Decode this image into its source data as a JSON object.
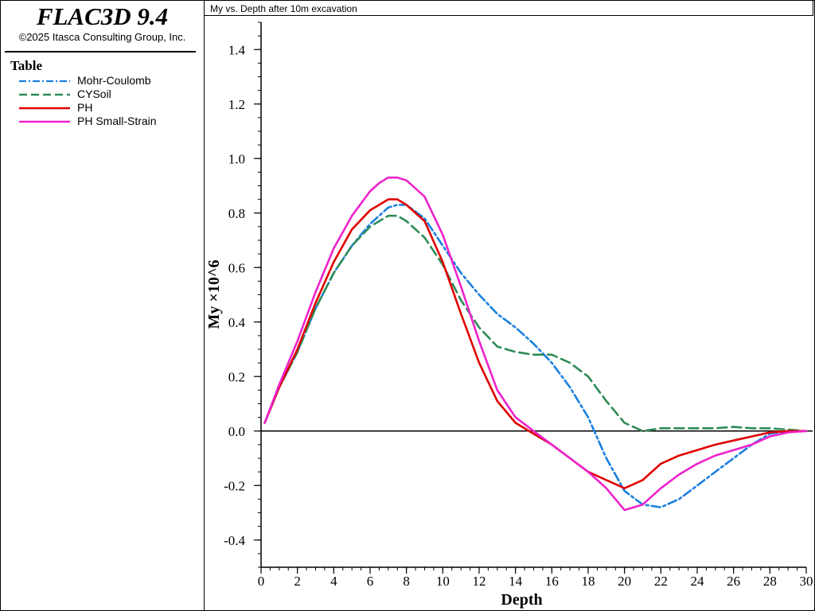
{
  "sidebar": {
    "brand": "FLAC3D 9.4",
    "copyright": "©2025 Itasca Consulting Group, Inc.",
    "table_title": "Table",
    "legend": [
      {
        "label": "Mohr-Coulomb",
        "color": "#1a7fe0",
        "style": "dashdot"
      },
      {
        "label": "CYSoil",
        "color": "#2e8b57",
        "style": "dashed"
      },
      {
        "label": "PH",
        "color": "#e00000",
        "style": "solid"
      },
      {
        "label": "PH Small-Strain",
        "color": "#ee22cc",
        "style": "solid"
      }
    ]
  },
  "chart_data": {
    "type": "line",
    "title": "My vs. Depth after 10m excavation",
    "xlabel": "Depth",
    "ylabel": "My ×10^6",
    "xlim": [
      0,
      30
    ],
    "ylim": [
      -0.5,
      1.5
    ],
    "xticks": [
      0,
      2,
      4,
      6,
      8,
      10,
      12,
      14,
      16,
      18,
      20,
      22,
      24,
      26,
      28,
      30
    ],
    "yticks": [
      -0.4,
      -0.2,
      0.0,
      0.2,
      0.4,
      0.6,
      0.8,
      1.0,
      1.2,
      1.4
    ],
    "ytick_labels": [
      "-0.4",
      "-0.2",
      "0.0",
      "0.2",
      "0.4",
      "0.6",
      "0.8",
      "1.0",
      "1.2",
      "1.4"
    ],
    "zero_line": true,
    "series": [
      {
        "name": "Mohr-Coulomb",
        "color": "#1a7fe0",
        "style": "dashdot",
        "x": [
          0.2,
          1,
          2,
          3,
          4,
          5,
          6,
          6.5,
          7,
          7.5,
          8,
          9,
          10,
          11,
          12,
          13,
          14,
          15,
          16,
          17,
          18,
          19,
          20,
          21,
          22,
          23,
          24,
          25,
          26,
          27,
          28,
          29,
          30
        ],
        "y": [
          0.03,
          0.16,
          0.29,
          0.45,
          0.58,
          0.68,
          0.76,
          0.79,
          0.82,
          0.83,
          0.83,
          0.78,
          0.68,
          0.58,
          0.5,
          0.43,
          0.38,
          0.32,
          0.25,
          0.16,
          0.05,
          -0.1,
          -0.22,
          -0.27,
          -0.28,
          -0.25,
          -0.2,
          -0.15,
          -0.1,
          -0.05,
          -0.01,
          0.0,
          0.0
        ]
      },
      {
        "name": "CYSoil",
        "color": "#2e8b57",
        "style": "dashed",
        "x": [
          0.2,
          1,
          2,
          3,
          4,
          5,
          6,
          6.5,
          7,
          7.5,
          8,
          9,
          10,
          11,
          12,
          13,
          14,
          15,
          16,
          17,
          18,
          19,
          20,
          21,
          22,
          23,
          24,
          25,
          26,
          27,
          28,
          29,
          30
        ],
        "y": [
          0.03,
          0.16,
          0.29,
          0.45,
          0.58,
          0.68,
          0.75,
          0.77,
          0.79,
          0.79,
          0.77,
          0.71,
          0.61,
          0.48,
          0.38,
          0.31,
          0.29,
          0.28,
          0.28,
          0.25,
          0.2,
          0.11,
          0.03,
          0.0,
          0.01,
          0.01,
          0.01,
          0.01,
          0.015,
          0.01,
          0.01,
          0.005,
          0.0
        ]
      },
      {
        "name": "PH",
        "color": "#e00000",
        "style": "solid",
        "x": [
          0.2,
          1,
          2,
          3,
          4,
          5,
          6,
          6.5,
          7,
          7.5,
          8,
          9,
          10,
          11,
          12,
          13,
          14,
          15,
          16,
          17,
          18,
          19,
          20,
          21,
          22,
          23,
          24,
          25,
          26,
          27,
          28,
          29,
          30
        ],
        "y": [
          0.03,
          0.16,
          0.3,
          0.47,
          0.62,
          0.74,
          0.81,
          0.83,
          0.85,
          0.85,
          0.83,
          0.77,
          0.62,
          0.43,
          0.25,
          0.11,
          0.03,
          -0.01,
          -0.05,
          -0.1,
          -0.15,
          -0.18,
          -0.21,
          -0.18,
          -0.12,
          -0.09,
          -0.07,
          -0.05,
          -0.035,
          -0.02,
          -0.005,
          0.0,
          0.0
        ]
      },
      {
        "name": "PH Small-Strain",
        "color": "#ee22cc",
        "style": "solid",
        "x": [
          0.2,
          1,
          2,
          3,
          4,
          5,
          6,
          6.5,
          7,
          7.5,
          8,
          9,
          10,
          11,
          12,
          13,
          14,
          15,
          16,
          17,
          18,
          19,
          20,
          21,
          22,
          23,
          24,
          25,
          26,
          27,
          28,
          29,
          30
        ],
        "y": [
          0.03,
          0.17,
          0.33,
          0.51,
          0.67,
          0.79,
          0.88,
          0.91,
          0.93,
          0.93,
          0.92,
          0.86,
          0.72,
          0.53,
          0.33,
          0.15,
          0.05,
          0.0,
          -0.05,
          -0.1,
          -0.15,
          -0.21,
          -0.29,
          -0.27,
          -0.21,
          -0.16,
          -0.12,
          -0.09,
          -0.07,
          -0.05,
          -0.02,
          -0.005,
          0.0
        ]
      }
    ]
  }
}
